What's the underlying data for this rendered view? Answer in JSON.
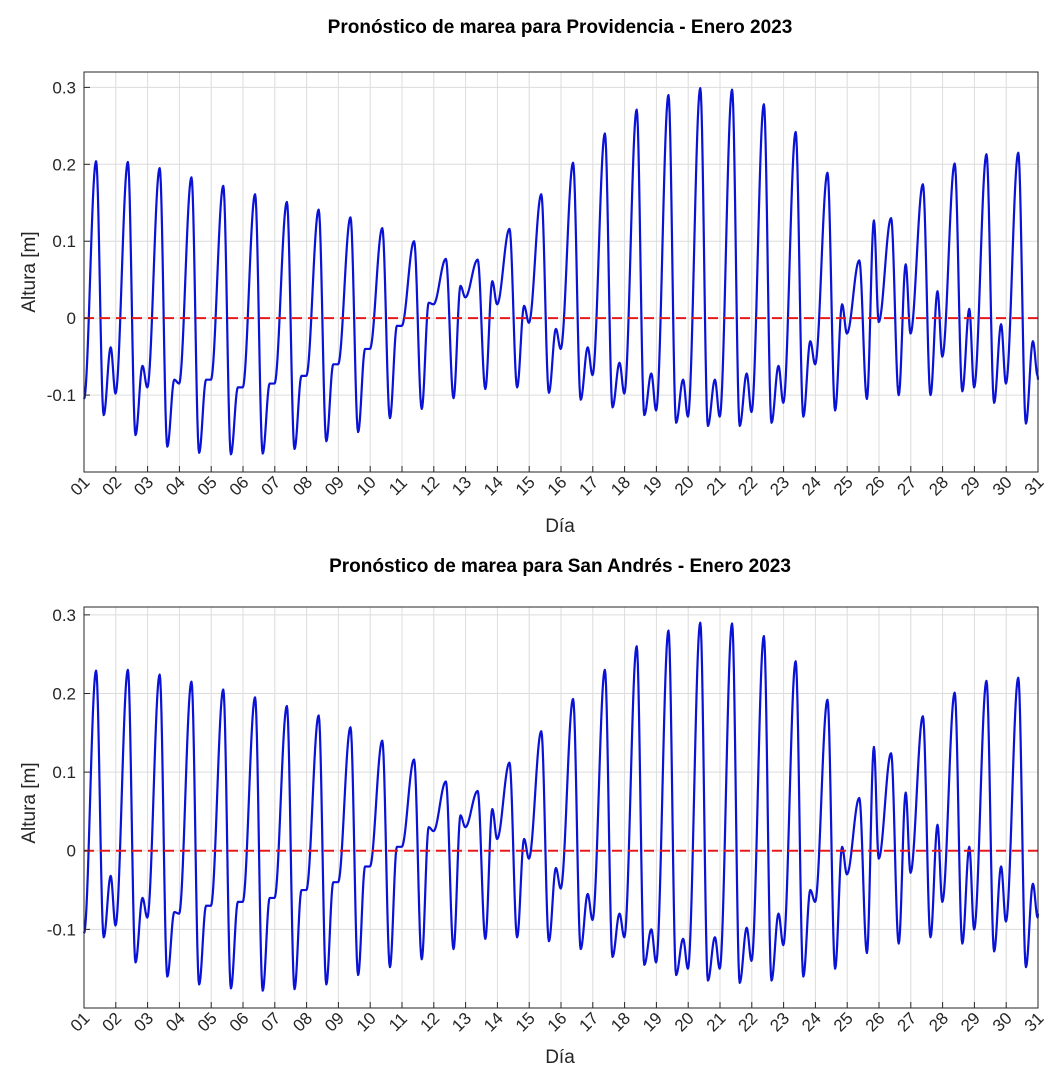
{
  "chart_data": [
    {
      "type": "line",
      "title": "Pronóstico de marea para Providencia - Enero 2023",
      "xlabel": "Día",
      "ylabel": "Altura [m]",
      "x_tick_labels": [
        "01",
        "02",
        "03",
        "04",
        "05",
        "06",
        "07",
        "08",
        "09",
        "10",
        "11",
        "12",
        "13",
        "14",
        "15",
        "16",
        "17",
        "18",
        "19",
        "20",
        "21",
        "22",
        "23",
        "24",
        "25",
        "26",
        "27",
        "28",
        "29",
        "30",
        "31"
      ],
      "y_ticks": [
        -0.1,
        0,
        0.1,
        0.2,
        0.3
      ],
      "y_tick_labels": [
        "-0.1",
        "0",
        "0.1",
        "0.2",
        "0.3"
      ],
      "xlim": [
        1,
        31
      ],
      "ylim": [
        -0.2,
        0.32
      ],
      "grid": true,
      "reference_line": {
        "y": 0,
        "color": "#e8191b",
        "style": "dashed"
      },
      "series": [
        {
          "color": "#0a12d6",
          "daily_extremes": [
            {
              "day": 1,
              "high1": 0.204,
              "low1": -0.126,
              "high2": -0.038,
              "low2": -0.098
            },
            {
              "day": 2,
              "high1": 0.203,
              "low1": -0.152,
              "high2": -0.062,
              "low2": -0.09
            },
            {
              "day": 3,
              "high1": 0.195,
              "low1": -0.167,
              "high2": -0.08,
              "low2": -0.085
            },
            {
              "day": 4,
              "high1": 0.183,
              "low1": -0.175,
              "high2": -0.08,
              "low2": -0.08
            },
            {
              "day": 5,
              "high1": 0.172,
              "low1": -0.177,
              "high2": -0.09,
              "low2": -0.09
            },
            {
              "day": 6,
              "high1": 0.161,
              "low1": -0.176,
              "high2": -0.085,
              "low2": -0.085
            },
            {
              "day": 7,
              "high1": 0.151,
              "low1": -0.17,
              "high2": -0.075,
              "low2": -0.075
            },
            {
              "day": 8,
              "high1": 0.141,
              "low1": -0.16,
              "high2": -0.06,
              "low2": -0.06
            },
            {
              "day": 9,
              "high1": 0.131,
              "low1": -0.148,
              "high2": -0.04,
              "low2": -0.04
            },
            {
              "day": 10,
              "high1": 0.117,
              "low1": -0.13,
              "high2": -0.01,
              "low2": -0.01
            },
            {
              "day": 11,
              "high1": 0.1,
              "low1": -0.118,
              "high2": 0.02,
              "low2": 0.018
            },
            {
              "day": 12,
              "high1": 0.077,
              "low1": -0.104,
              "high2": 0.042,
              "low2": 0.027
            },
            {
              "day": 13,
              "high1": 0.076,
              "low1": -0.092,
              "high2": 0.048,
              "low2": 0.018
            },
            {
              "day": 14,
              "high1": 0.116,
              "low1": -0.09,
              "high2": 0.016,
              "low2": -0.006
            },
            {
              "day": 15,
              "high1": 0.161,
              "low1": -0.097,
              "high2": -0.014,
              "low2": -0.04
            },
            {
              "day": 16,
              "high1": 0.202,
              "low1": -0.106,
              "high2": -0.038,
              "low2": -0.074
            },
            {
              "day": 17,
              "high1": 0.24,
              "low1": -0.116,
              "high2": -0.058,
              "low2": -0.098
            },
            {
              "day": 18,
              "high1": 0.271,
              "low1": -0.126,
              "high2": -0.072,
              "low2": -0.12
            },
            {
              "day": 19,
              "high1": 0.29,
              "low1": -0.136,
              "high2": -0.08,
              "low2": -0.128
            },
            {
              "day": 20,
              "high1": 0.299,
              "low1": -0.14,
              "high2": -0.08,
              "low2": -0.128
            },
            {
              "day": 21,
              "high1": 0.297,
              "low1": -0.14,
              "high2": -0.072,
              "low2": -0.122
            },
            {
              "day": 22,
              "high1": 0.278,
              "low1": -0.136,
              "high2": -0.062,
              "low2": -0.11
            },
            {
              "day": 23,
              "high1": 0.242,
              "low1": -0.128,
              "high2": -0.03,
              "low2": -0.06
            },
            {
              "day": 24,
              "high1": 0.189,
              "low1": -0.12,
              "high2": 0.018,
              "low2": -0.02
            },
            {
              "day": 25,
              "high1": 0.075,
              "low1": -0.105,
              "high2": 0.127,
              "low2": -0.005
            },
            {
              "day": 26,
              "high1": 0.13,
              "low1": -0.1,
              "high2": 0.07,
              "low2": -0.02
            },
            {
              "day": 27,
              "high1": 0.174,
              "low1": -0.1,
              "high2": 0.035,
              "low2": -0.05
            },
            {
              "day": 28,
              "high1": 0.201,
              "low1": -0.095,
              "high2": 0.012,
              "low2": -0.09
            },
            {
              "day": 29,
              "high1": 0.213,
              "low1": -0.11,
              "high2": -0.008,
              "low2": -0.085
            },
            {
              "day": 30,
              "high1": 0.215,
              "low1": -0.137,
              "high2": -0.03,
              "low2": -0.075
            }
          ]
        }
      ]
    },
    {
      "type": "line",
      "title": "Pronóstico de marea para San  Andrés - Enero 2023",
      "xlabel": "Día",
      "ylabel": "Altura [m]",
      "x_tick_labels": [
        "01",
        "02",
        "03",
        "04",
        "05",
        "06",
        "07",
        "08",
        "09",
        "10",
        "11",
        "12",
        "13",
        "14",
        "15",
        "16",
        "17",
        "18",
        "19",
        "20",
        "21",
        "22",
        "23",
        "24",
        "25",
        "26",
        "27",
        "28",
        "29",
        "30",
        "31"
      ],
      "y_ticks": [
        -0.1,
        0,
        0.1,
        0.2,
        0.3
      ],
      "y_tick_labels": [
        "-0.1",
        "0",
        "0.1",
        "0.2",
        "0.3"
      ],
      "xlim": [
        1,
        31
      ],
      "ylim": [
        -0.2,
        0.31
      ],
      "grid": true,
      "reference_line": {
        "y": 0,
        "color": "#e8191b",
        "style": "dashed"
      },
      "series": [
        {
          "color": "#0a12d6",
          "daily_extremes": [
            {
              "day": 1,
              "high1": 0.229,
              "low1": -0.11,
              "high2": -0.032,
              "low2": -0.095
            },
            {
              "day": 2,
              "high1": 0.23,
              "low1": -0.142,
              "high2": -0.06,
              "low2": -0.085
            },
            {
              "day": 3,
              "high1": 0.224,
              "low1": -0.16,
              "high2": -0.078,
              "low2": -0.08
            },
            {
              "day": 4,
              "high1": 0.215,
              "low1": -0.17,
              "high2": -0.07,
              "low2": -0.07
            },
            {
              "day": 5,
              "high1": 0.205,
              "low1": -0.175,
              "high2": -0.065,
              "low2": -0.065
            },
            {
              "day": 6,
              "high1": 0.195,
              "low1": -0.178,
              "high2": -0.06,
              "low2": -0.06
            },
            {
              "day": 7,
              "high1": 0.184,
              "low1": -0.176,
              "high2": -0.05,
              "low2": -0.05
            },
            {
              "day": 8,
              "high1": 0.172,
              "low1": -0.17,
              "high2": -0.04,
              "low2": -0.04
            },
            {
              "day": 9,
              "high1": 0.157,
              "low1": -0.158,
              "high2": -0.02,
              "low2": -0.02
            },
            {
              "day": 10,
              "high1": 0.14,
              "low1": -0.148,
              "high2": 0.005,
              "low2": 0.005
            },
            {
              "day": 11,
              "high1": 0.116,
              "low1": -0.138,
              "high2": 0.03,
              "low2": 0.025
            },
            {
              "day": 12,
              "high1": 0.088,
              "low1": -0.125,
              "high2": 0.045,
              "low2": 0.03
            },
            {
              "day": 13,
              "high1": 0.076,
              "low1": -0.112,
              "high2": 0.053,
              "low2": 0.015
            },
            {
              "day": 14,
              "high1": 0.112,
              "low1": -0.11,
              "high2": 0.015,
              "low2": -0.01
            },
            {
              "day": 15,
              "high1": 0.152,
              "low1": -0.115,
              "high2": -0.022,
              "low2": -0.048
            },
            {
              "day": 16,
              "high1": 0.193,
              "low1": -0.125,
              "high2": -0.055,
              "low2": -0.088
            },
            {
              "day": 17,
              "high1": 0.23,
              "low1": -0.135,
              "high2": -0.08,
              "low2": -0.11
            },
            {
              "day": 18,
              "high1": 0.26,
              "low1": -0.145,
              "high2": -0.1,
              "low2": -0.142
            },
            {
              "day": 19,
              "high1": 0.28,
              "low1": -0.158,
              "high2": -0.112,
              "low2": -0.15
            },
            {
              "day": 20,
              "high1": 0.29,
              "low1": -0.165,
              "high2": -0.11,
              "low2": -0.15
            },
            {
              "day": 21,
              "high1": 0.289,
              "low1": -0.168,
              "high2": -0.098,
              "low2": -0.14
            },
            {
              "day": 22,
              "high1": 0.273,
              "low1": -0.165,
              "high2": -0.08,
              "low2": -0.12
            },
            {
              "day": 23,
              "high1": 0.241,
              "low1": -0.16,
              "high2": -0.05,
              "low2": -0.065
            },
            {
              "day": 24,
              "high1": 0.192,
              "low1": -0.15,
              "high2": 0.005,
              "low2": -0.03
            },
            {
              "day": 25,
              "high1": 0.067,
              "low1": -0.13,
              "high2": 0.132,
              "low2": -0.01
            },
            {
              "day": 26,
              "high1": 0.124,
              "low1": -0.118,
              "high2": 0.074,
              "low2": -0.028
            },
            {
              "day": 27,
              "high1": 0.171,
              "low1": -0.11,
              "high2": 0.033,
              "low2": -0.065
            },
            {
              "day": 28,
              "high1": 0.201,
              "low1": -0.118,
              "high2": 0.005,
              "low2": -0.1
            },
            {
              "day": 29,
              "high1": 0.216,
              "low1": -0.128,
              "high2": -0.02,
              "low2": -0.09
            },
            {
              "day": 30,
              "high1": 0.22,
              "low1": -0.148,
              "high2": -0.042,
              "low2": -0.085
            }
          ]
        }
      ]
    }
  ]
}
